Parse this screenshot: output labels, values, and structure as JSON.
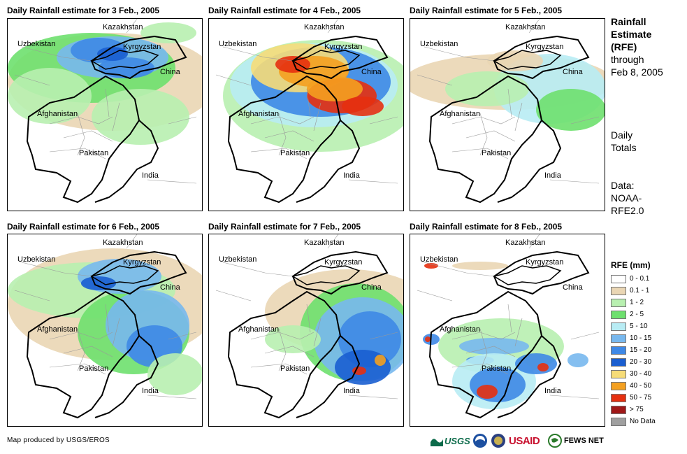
{
  "panels": [
    {
      "title": "Daily Rainfall estimate for 3 Feb., 2005",
      "labels": {
        "kaz": "Kazakhstan",
        "uzb": "Uzbekistan",
        "kyr": "Kyrgyzstan",
        "chi": "China",
        "afg": "Afghanistan",
        "pak": "Pakistan",
        "ind": "India"
      },
      "rain_level": "moderate-north"
    },
    {
      "title": "Daily Rainfall estimate for 4 Feb., 2005",
      "labels": {
        "kaz": "Kazakhstan",
        "uzb": "Uzbekistan",
        "kyr": "Kyrgyzstan",
        "chi": "China",
        "afg": "Afghanistan",
        "pak": "Pakistan",
        "ind": "India"
      },
      "rain_level": "heavy-north"
    },
    {
      "title": "Daily Rainfall estimate for 5 Feb., 2005",
      "labels": {
        "kaz": "Kazakhstan",
        "uzb": "Uzbekistan",
        "kyr": "Kyrgyzstan",
        "chi": "China",
        "afg": "Afghanistan",
        "pak": "Pakistan",
        "ind": "India"
      },
      "rain_level": "light"
    },
    {
      "title": "Daily Rainfall estimate for 6 Feb., 2005",
      "labels": {
        "kaz": "Kazakhstan",
        "uzb": "Uzbekistan",
        "kyr": "Kyrgyzstan",
        "chi": "China",
        "afg": "Afghanistan",
        "pak": "Pakistan",
        "ind": "India"
      },
      "rain_level": "moderate-east"
    },
    {
      "title": "Daily Rainfall estimate for 7 Feb., 2005",
      "labels": {
        "kaz": "Kazakhstan",
        "uzb": "Uzbekistan",
        "kyr": "Kyrgyzstan",
        "chi": "China",
        "afg": "Afghanistan",
        "pak": "Pakistan",
        "ind": "India"
      },
      "rain_level": "moderate-southeast"
    },
    {
      "title": "Daily Rainfall estimate for 8 Feb., 2005",
      "labels": {
        "kaz": "Kazakhstan",
        "uzb": "Uzbekistan",
        "kyr": "Kyrgyzstan",
        "chi": "China",
        "afg": "Afghanistan",
        "pak": "Pakistan",
        "ind": "India"
      },
      "rain_level": "scattered-south"
    }
  ],
  "side": {
    "title_l1": "Rainfall",
    "title_l2": "Estimate",
    "title_l3": "(RFE)",
    "through": "through",
    "date": "Feb 8, 2005",
    "daily1": "Daily",
    "daily2": "Totals",
    "data1": "Data:",
    "data2": "NOAA-",
    "data3": "RFE2.0"
  },
  "legend": {
    "title": "RFE (mm)",
    "items": [
      {
        "label": "0 - 0.1",
        "color": "#ffffff"
      },
      {
        "label": "0.1 - 1",
        "color": "#ead6b4"
      },
      {
        "label": "1 - 2",
        "color": "#b8f0b0"
      },
      {
        "label": "2 - 5",
        "color": "#6ee06e"
      },
      {
        "label": "5 - 10",
        "color": "#b8ecf4"
      },
      {
        "label": "10 - 15",
        "color": "#78b8ee"
      },
      {
        "label": "15 - 20",
        "color": "#3e88e6"
      },
      {
        "label": "20 - 30",
        "color": "#1a5ed0"
      },
      {
        "label": "30 - 40",
        "color": "#f6dc78"
      },
      {
        "label": "40 - 50",
        "color": "#f4a020"
      },
      {
        "label": "50 - 75",
        "color": "#e63010"
      },
      {
        "label": "> 75",
        "color": "#a01818"
      },
      {
        "label": "No Data",
        "color": "#a0a0a0"
      }
    ]
  },
  "footer": {
    "credit": "Map produced by USGS/EROS",
    "usgs": "USGS",
    "usaid": "USAID",
    "fewsnet": "FEWS NET"
  }
}
